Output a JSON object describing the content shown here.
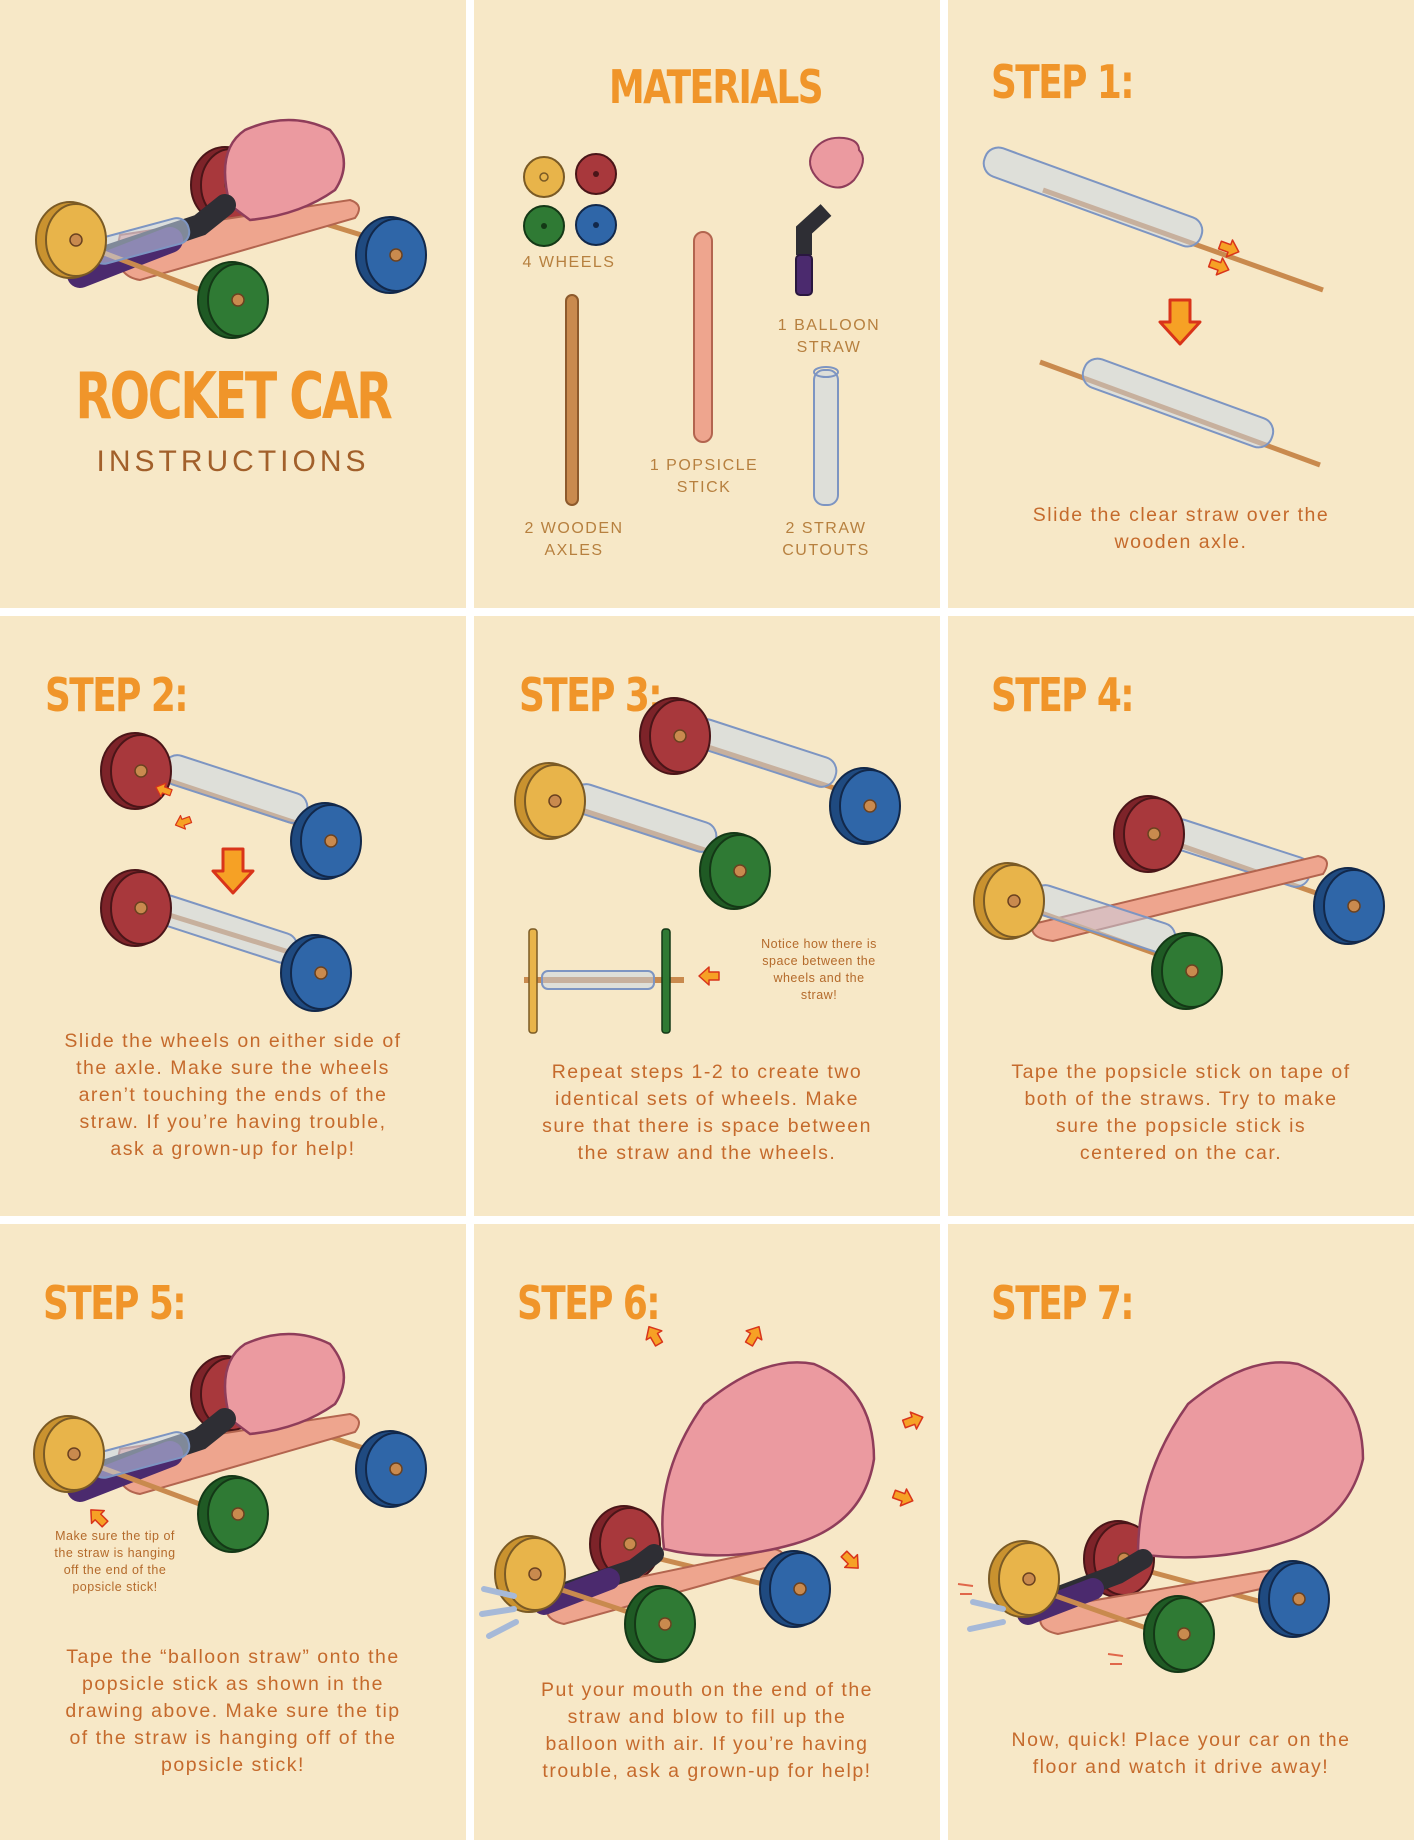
{
  "cover": {
    "title": "ROCKET CAR",
    "subtitle": "INSTRUCTIONS"
  },
  "materials": {
    "heading": "MATERIALS",
    "wheels_label": "4 WHEELS",
    "balloon_label": "1 BALLOON\nSTRAW",
    "popsicle_label": "1 POPSICLE\nSTICK",
    "axles_label": "2 WOODEN\nAXLES",
    "straw_label": "2 STRAW\nCUTOUTS"
  },
  "steps": [
    {
      "title": "STEP 1:",
      "text": "Slide the clear straw over the\nwooden axle."
    },
    {
      "title": "STEP 2:",
      "text": "Slide the wheels on either side of\nthe axle. Make sure the wheels\naren’t touching the ends of the\nstraw. If you’re having trouble,\nask a grown-up for help!"
    },
    {
      "title": "STEP 3:",
      "text": "Repeat steps 1-2 to create two\nidentical sets of wheels. Make\nsure that there is space between\nthe straw and the wheels.",
      "note": "Notice how there is\nspace between the\nwheels and the\nstraw!"
    },
    {
      "title": "STEP 4:",
      "text": "Tape the popsicle stick on tape of\nboth of the straws. Try to make\nsure the popsicle stick is\ncentered on the car."
    },
    {
      "title": "STEP 5:",
      "text": "Tape the “balloon straw” onto the\npopsicle stick as shown in the\ndrawing above. Make sure the tip\nof the straw is hanging off of the\npopsicle stick!",
      "note": "Make sure the tip of\nthe straw is hanging\noff the end of the\npopsicle stick!"
    },
    {
      "title": "STEP 6:",
      "text": "Put your mouth on the end of the\nstraw and blow to fill up the\nballoon with air. If you’re having\ntrouble, ask a grown-up for help!"
    },
    {
      "title": "STEP 7:",
      "text": "Now, quick! Place your car on the\nfloor and watch it drive away!"
    }
  ],
  "colors": {
    "card_bg": "#f7e8c7",
    "heading": "#f0952a",
    "text": "#c56a2c",
    "wheel_yellow": "#e8b44a",
    "wheel_red": "#a8383c",
    "wheel_green": "#2f7a34",
    "wheel_blue": "#2f66a8",
    "balloon": "#eb9aa0",
    "popsicle": "#eea58e",
    "axle": "#c98a4e",
    "arrow": "#f26a1b"
  }
}
